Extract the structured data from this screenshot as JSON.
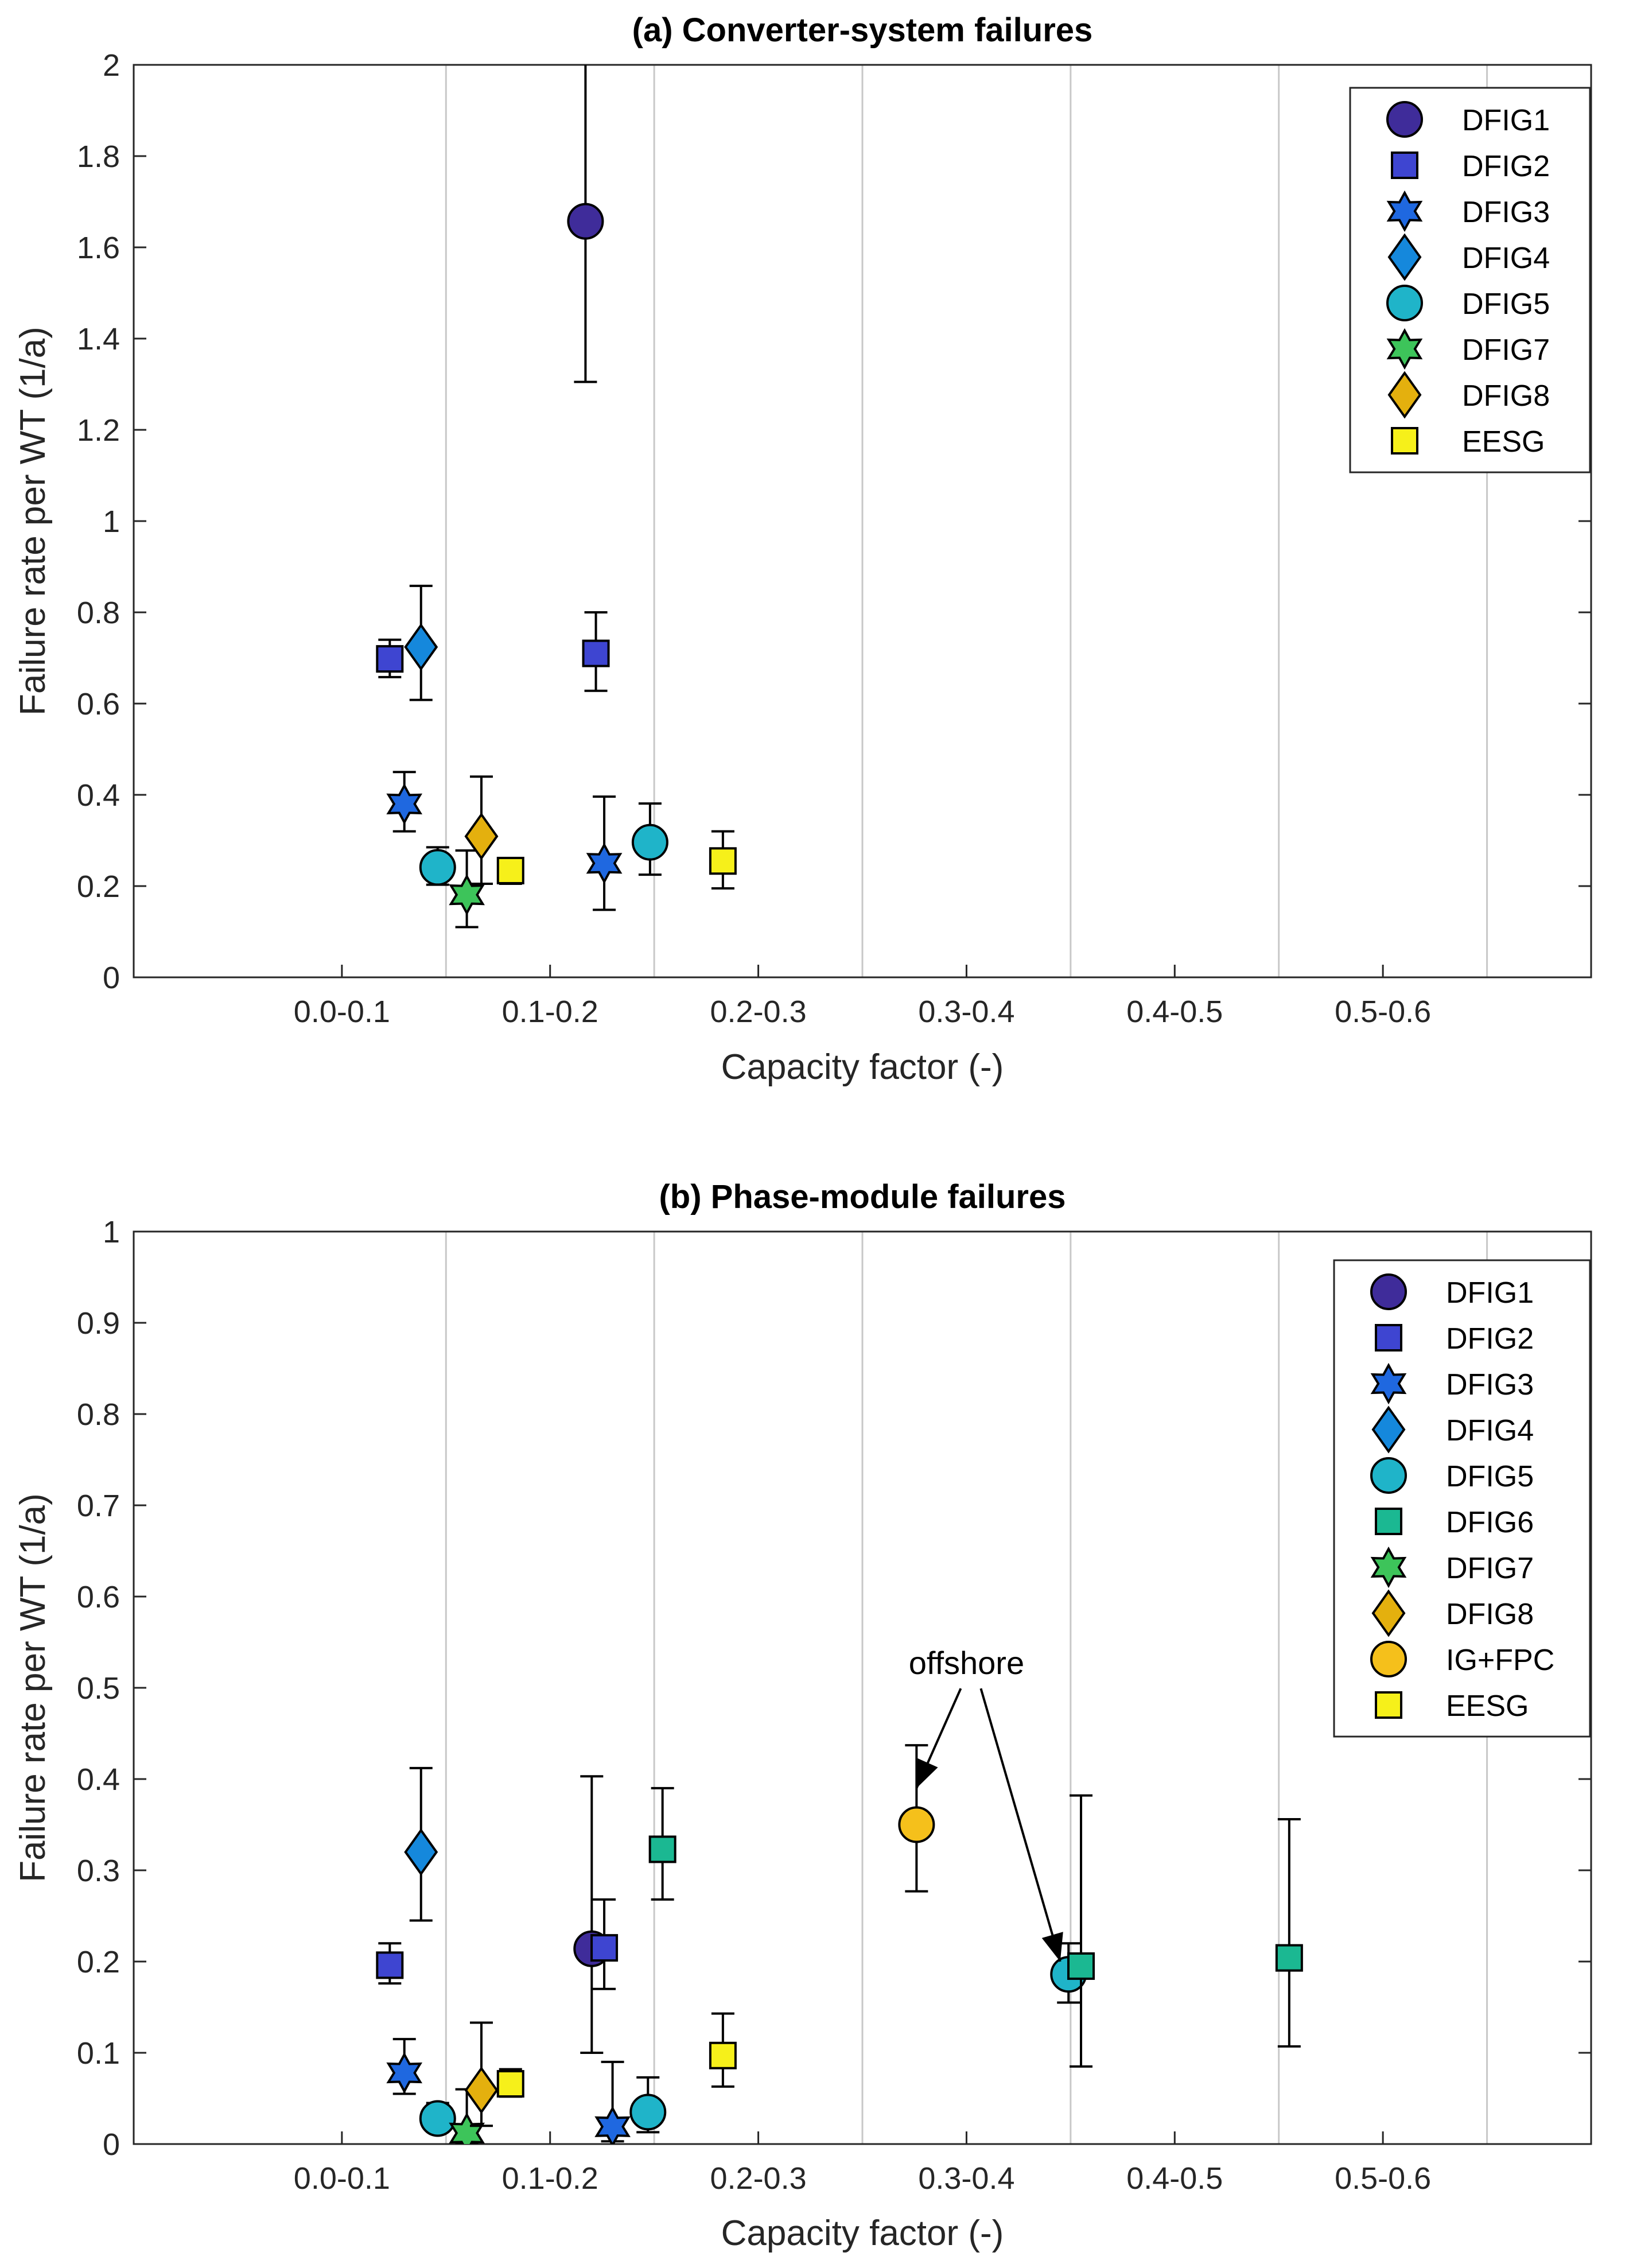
{
  "chart_data": [
    {
      "type": "scatter",
      "title": "(a) Converter-system failures",
      "xlabel": "Capacity factor (-)",
      "ylabel": "Failure rate per WT (1/a)",
      "categories": [
        "0.0-0.1",
        "0.1-0.2",
        "0.2-0.3",
        "0.3-0.4",
        "0.4-0.5",
        "0.5-0.6"
      ],
      "xlim": [
        0,
        0.7
      ],
      "ylim": [
        0,
        2
      ],
      "yticks": [
        "0",
        "0.2",
        "0.4",
        "0.6",
        "0.8",
        "1",
        "1.2",
        "1.4",
        "1.6",
        "1.8",
        "2"
      ],
      "legend_position": "top-right",
      "series": [
        {
          "name": "DFIG1",
          "marker": "circle",
          "color": "#3f2c9a",
          "points": [
            {
              "x": 0.217,
              "y": 1.657,
              "lo": 1.305,
              "hi": 2.05
            }
          ]
        },
        {
          "name": "DFIG2",
          "marker": "square",
          "color": "#3e45d1",
          "points": [
            {
              "x": 0.123,
              "y": 0.698,
              "lo": 0.658,
              "hi": 0.74
            },
            {
              "x": 0.222,
              "y": 0.71,
              "lo": 0.628,
              "hi": 0.8
            }
          ]
        },
        {
          "name": "DFIG3",
          "marker": "hexagram",
          "color": "#1f68e0",
          "points": [
            {
              "x": 0.13,
              "y": 0.38,
              "lo": 0.32,
              "hi": 0.45
            },
            {
              "x": 0.226,
              "y": 0.25,
              "lo": 0.148,
              "hi": 0.396
            }
          ]
        },
        {
          "name": "DFIG4",
          "marker": "diamond",
          "color": "#1588dc",
          "points": [
            {
              "x": 0.138,
              "y": 0.724,
              "lo": 0.608,
              "hi": 0.858
            }
          ]
        },
        {
          "name": "DFIG5",
          "marker": "circle",
          "color": "#1fb4c9",
          "points": [
            {
              "x": 0.146,
              "y": 0.241,
              "lo": 0.203,
              "hi": 0.285
            },
            {
              "x": 0.248,
              "y": 0.296,
              "lo": 0.225,
              "hi": 0.381
            }
          ]
        },
        {
          "name": "DFIG7",
          "marker": "hexagram",
          "color": "#3dc45a",
          "points": [
            {
              "x": 0.16,
              "y": 0.181,
              "lo": 0.11,
              "hi": 0.278
            }
          ]
        },
        {
          "name": "DFIG8",
          "marker": "diamond",
          "color": "#e4b00e",
          "points": [
            {
              "x": 0.167,
              "y": 0.309,
              "lo": 0.205,
              "hi": 0.44
            }
          ]
        },
        {
          "name": "EESG",
          "marker": "square",
          "color": "#f6f01a",
          "points": [
            {
              "x": 0.181,
              "y": 0.234,
              "lo": 0.205,
              "hi": 0.255
            },
            {
              "x": 0.283,
              "y": 0.255,
              "lo": 0.195,
              "hi": 0.32
            }
          ]
        }
      ]
    },
    {
      "type": "scatter",
      "title": "(b) Phase-module failures",
      "xlabel": "Capacity factor (-)",
      "ylabel": "Failure rate per WT (1/a)",
      "categories": [
        "0.0-0.1",
        "0.1-0.2",
        "0.2-0.3",
        "0.3-0.4",
        "0.4-0.5",
        "0.5-0.6"
      ],
      "xlim": [
        0,
        0.7
      ],
      "ylim": [
        0,
        1
      ],
      "yticks": [
        "0",
        "0.1",
        "0.2",
        "0.3",
        "0.4",
        "0.5",
        "0.6",
        "0.7",
        "0.8",
        "0.9",
        "1"
      ],
      "legend_position": "top-right",
      "annotation": {
        "text": "offshore",
        "x": 0.4,
        "y": 0.515,
        "arrows_to": [
          {
            "x": 0.376,
            "y": 0.39
          },
          {
            "x": 0.445,
            "y": 0.2
          }
        ]
      },
      "series": [
        {
          "name": "DFIG1",
          "marker": "circle",
          "color": "#3f2c9a",
          "points": [
            {
              "x": 0.22,
              "y": 0.214,
              "lo": 0.1,
              "hi": 0.403
            }
          ]
        },
        {
          "name": "DFIG2",
          "marker": "square",
          "color": "#3e45d1",
          "points": [
            {
              "x": 0.123,
              "y": 0.196,
              "lo": 0.176,
              "hi": 0.22
            },
            {
              "x": 0.226,
              "y": 0.215,
              "lo": 0.17,
              "hi": 0.268
            }
          ]
        },
        {
          "name": "DFIG3",
          "marker": "hexagram",
          "color": "#1f68e0",
          "points": [
            {
              "x": 0.13,
              "y": 0.078,
              "lo": 0.055,
              "hi": 0.115
            },
            {
              "x": 0.23,
              "y": 0.019,
              "lo": 0.003,
              "hi": 0.09
            }
          ]
        },
        {
          "name": "DFIG4",
          "marker": "diamond",
          "color": "#1588dc",
          "points": [
            {
              "x": 0.138,
              "y": 0.32,
              "lo": 0.245,
              "hi": 0.412
            }
          ]
        },
        {
          "name": "DFIG5",
          "marker": "circle",
          "color": "#1fb4c9",
          "points": [
            {
              "x": 0.146,
              "y": 0.028,
              "lo": 0.015,
              "hi": 0.045
            },
            {
              "x": 0.247,
              "y": 0.035,
              "lo": 0.013,
              "hi": 0.073
            },
            {
              "x": 0.449,
              "y": 0.186,
              "lo": 0.155,
              "hi": 0.22
            }
          ]
        },
        {
          "name": "DFIG6",
          "marker": "square",
          "color": "#1bb892",
          "points": [
            {
              "x": 0.254,
              "y": 0.323,
              "lo": 0.268,
              "hi": 0.39
            },
            {
              "x": 0.455,
              "y": 0.195,
              "lo": 0.085,
              "hi": 0.382
            },
            {
              "x": 0.555,
              "y": 0.204,
              "lo": 0.107,
              "hi": 0.356
            }
          ]
        },
        {
          "name": "DFIG7",
          "marker": "hexagram",
          "color": "#3dc45a",
          "points": [
            {
              "x": 0.16,
              "y": 0.012,
              "lo": 0.0,
              "hi": 0.06
            }
          ]
        },
        {
          "name": "DFIG8",
          "marker": "diamond",
          "color": "#e4b00e",
          "points": [
            {
              "x": 0.167,
              "y": 0.059,
              "lo": 0.02,
              "hi": 0.133
            }
          ]
        },
        {
          "name": "IG+FPC",
          "marker": "circle",
          "color": "#f5c01b",
          "points": [
            {
              "x": 0.376,
              "y": 0.35,
              "lo": 0.277,
              "hi": 0.437
            }
          ]
        },
        {
          "name": "EESG",
          "marker": "square",
          "color": "#f6f01a",
          "points": [
            {
              "x": 0.181,
              "y": 0.066,
              "lo": 0.052,
              "hi": 0.082
            },
            {
              "x": 0.283,
              "y": 0.097,
              "lo": 0.063,
              "hi": 0.143
            }
          ]
        }
      ]
    }
  ]
}
